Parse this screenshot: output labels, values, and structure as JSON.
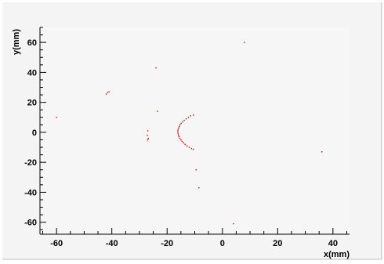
{
  "chart_data": {
    "type": "scatter",
    "xlabel": "x(mm)",
    "ylabel": "y(mm)",
    "xlim": [
      -66,
      46
    ],
    "ylim": [
      -68,
      70
    ],
    "x_ticks": [
      -60,
      -40,
      -20,
      0,
      20,
      40
    ],
    "y_ticks": [
      -60,
      -40,
      -20,
      0,
      20,
      40,
      60
    ],
    "grid": false,
    "colors": {
      "frame_bg": "#f4f4f4",
      "plot_bg": "#f6f6f6",
      "points": "#d40000",
      "axis": "#000000"
    },
    "series": [
      {
        "points": [
          [
            -10.5,
            11.5
          ],
          [
            -11.5,
            11
          ],
          [
            -12.3,
            10
          ],
          [
            -13.1,
            9
          ],
          [
            -13.8,
            8
          ],
          [
            -14.4,
            7
          ],
          [
            -14.9,
            6
          ],
          [
            -15.3,
            5
          ],
          [
            -15.6,
            4
          ],
          [
            -15.8,
            3
          ],
          [
            -16.0,
            2
          ],
          [
            -16.1,
            1
          ],
          [
            -16.1,
            0
          ],
          [
            -16.0,
            -1
          ],
          [
            -15.9,
            -2
          ],
          [
            -15.7,
            -3
          ],
          [
            -15.4,
            -4
          ],
          [
            -15.0,
            -5
          ],
          [
            -14.6,
            -6
          ],
          [
            -14.1,
            -7
          ],
          [
            -13.5,
            -8
          ],
          [
            -12.8,
            -9
          ],
          [
            -12.0,
            -10
          ],
          [
            -11.2,
            -10.8
          ],
          [
            -10.5,
            -11.3
          ],
          [
            -42,
            25.5
          ],
          [
            -41.5,
            26.5
          ],
          [
            -41,
            27
          ],
          [
            -27,
            1
          ],
          [
            -27.2,
            -2
          ],
          [
            -27,
            -5
          ],
          [
            -26.8,
            -4
          ],
          [
            -60,
            10
          ],
          [
            -23.5,
            14
          ],
          [
            -24,
            43
          ],
          [
            8,
            60
          ],
          [
            -9.5,
            -25
          ],
          [
            -8.5,
            -37
          ],
          [
            4,
            -61
          ],
          [
            36,
            -13
          ]
        ]
      }
    ]
  }
}
